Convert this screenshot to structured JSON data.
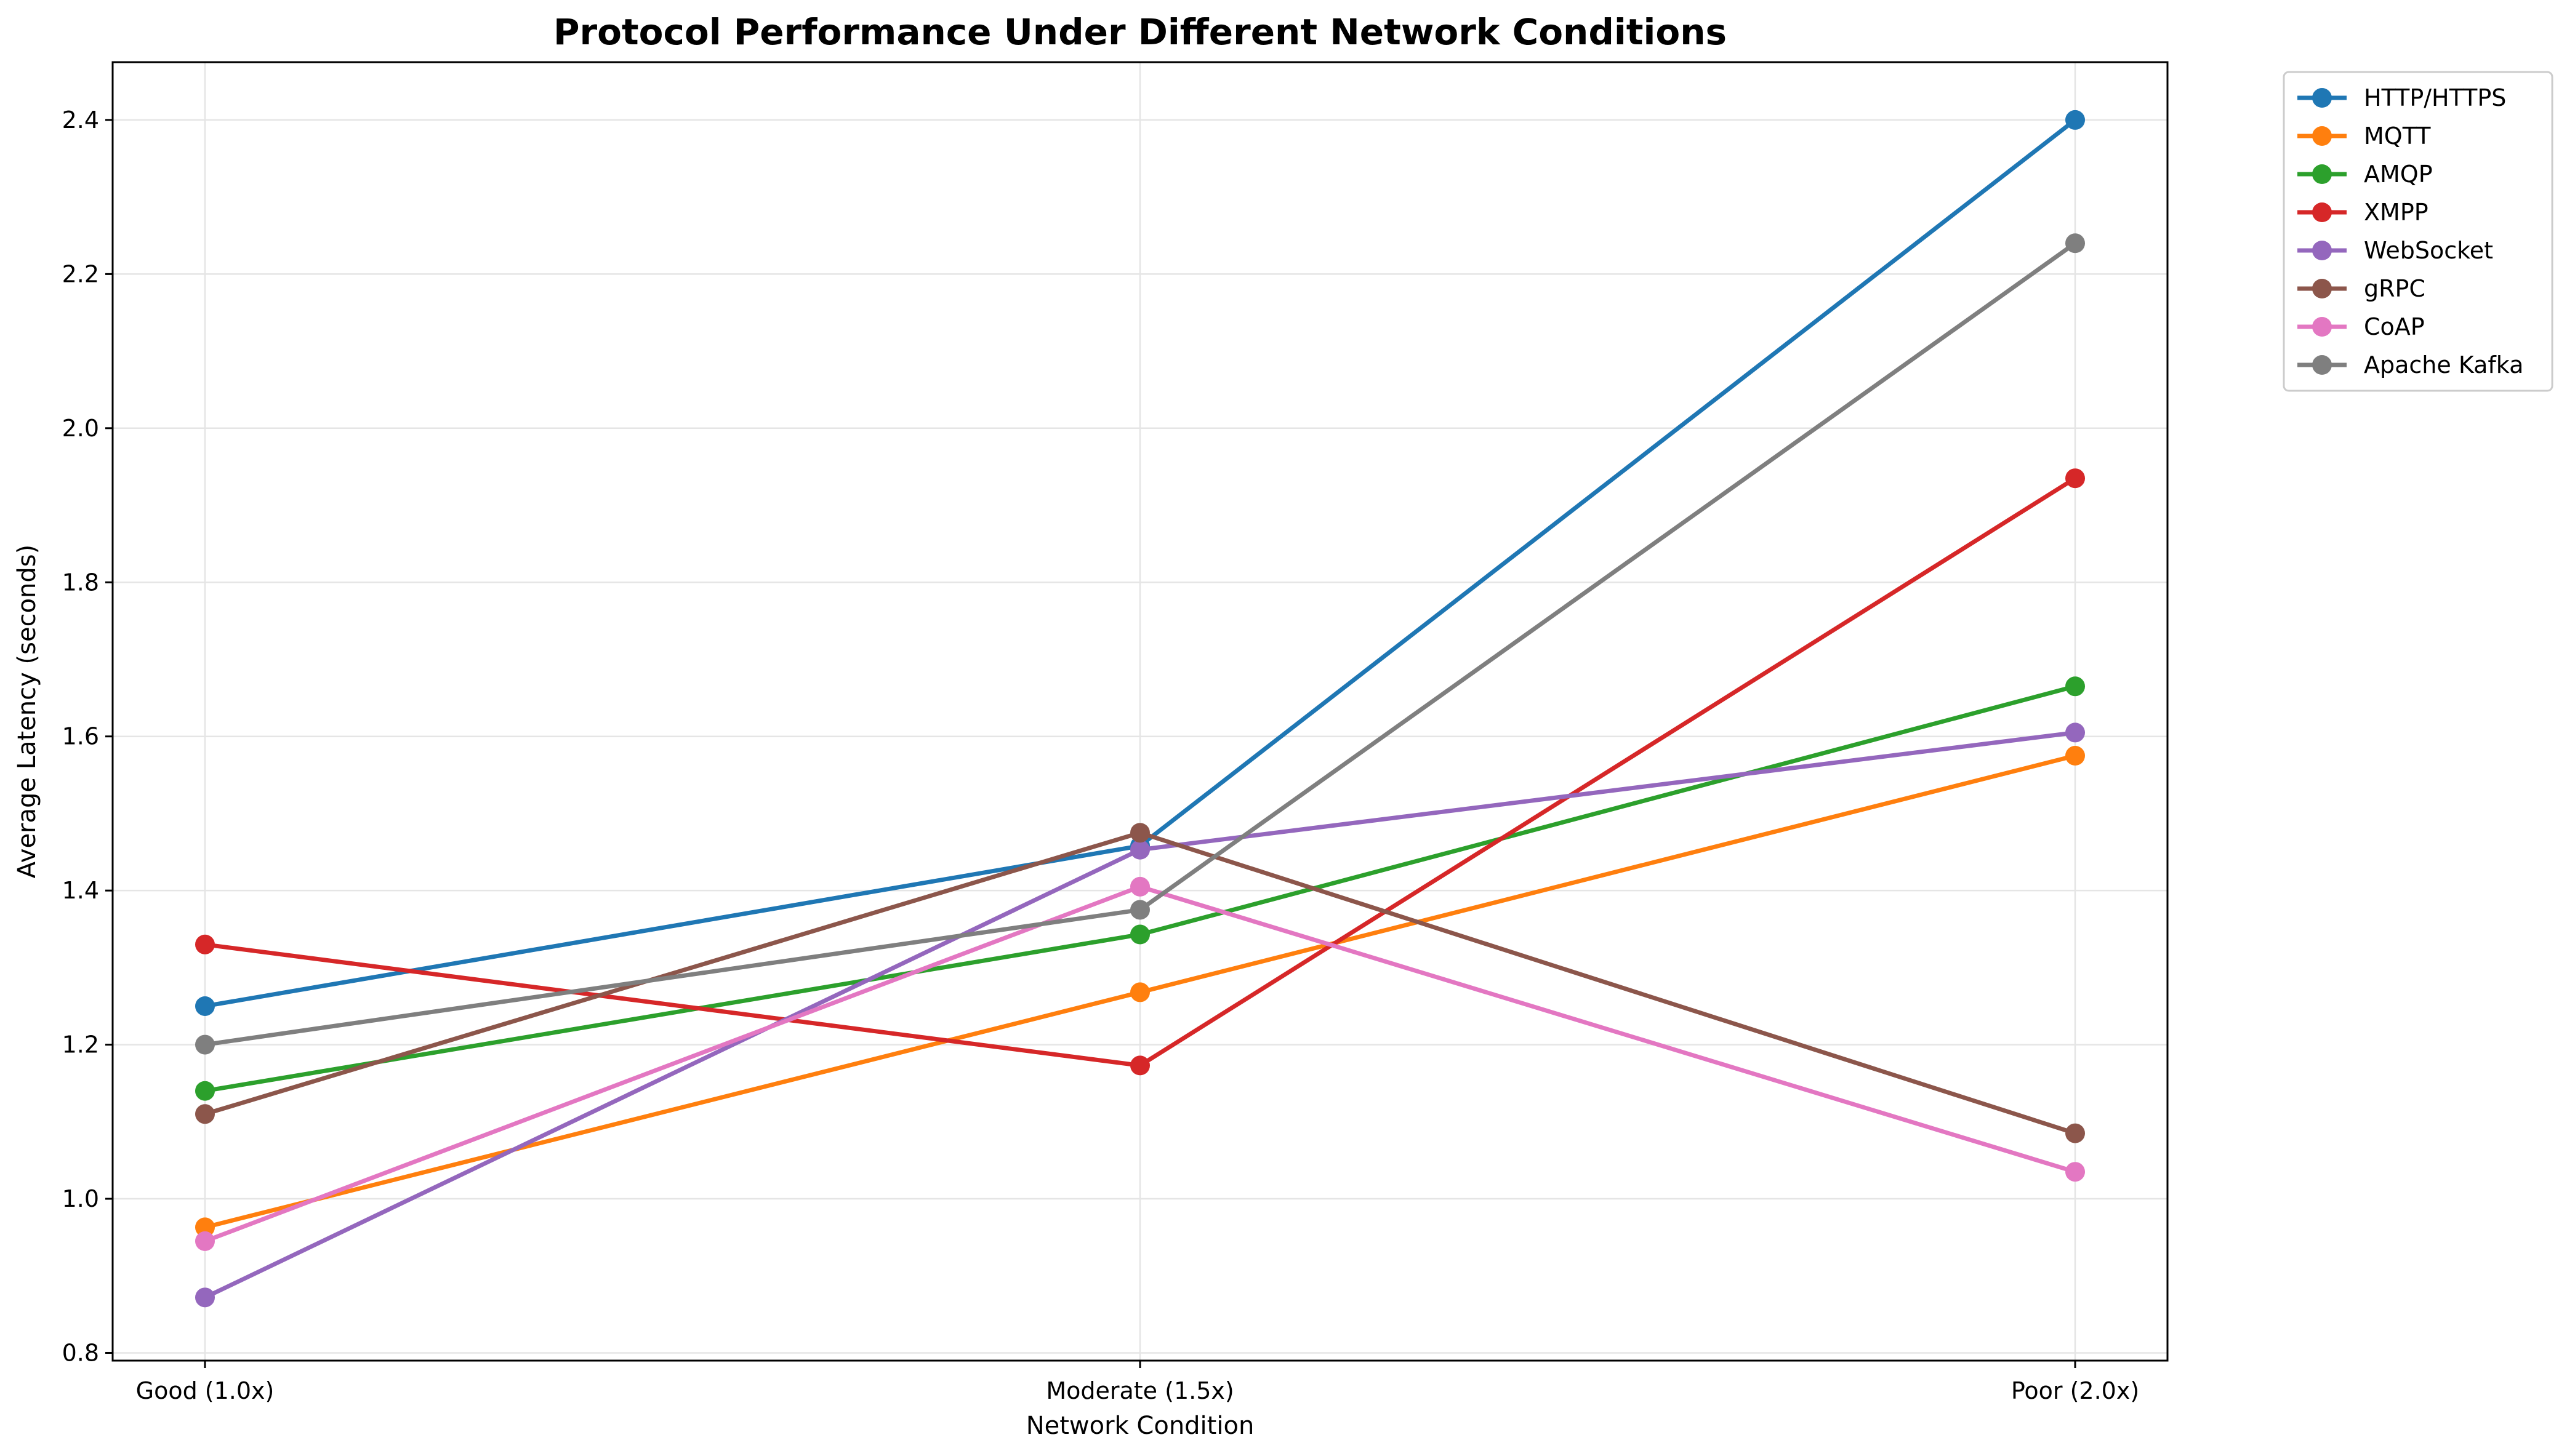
{
  "chart_data": {
    "type": "line",
    "title": "Protocol Performance Under Different Network Conditions",
    "xlabel": "Network Condition",
    "ylabel": "Average Latency (seconds)",
    "categories": [
      "Good (1.0x)",
      "Moderate (1.5x)",
      "Poor (2.0x)"
    ],
    "ylim": [
      0.79,
      2.475
    ],
    "yticks": [
      0.8,
      1.0,
      1.2,
      1.4,
      1.6,
      1.8,
      2.0,
      2.2,
      2.4
    ],
    "grid": true,
    "legend_position": "outside-top-right",
    "series": [
      {
        "name": "HTTP/HTTPS",
        "color": "#1f77b4",
        "values": [
          1.25,
          1.458,
          2.4
        ]
      },
      {
        "name": "MQTT",
        "color": "#ff7f0e",
        "values": [
          0.963,
          1.268,
          1.575
        ]
      },
      {
        "name": "AMQP",
        "color": "#2ca02c",
        "values": [
          1.14,
          1.343,
          1.665
        ]
      },
      {
        "name": "XMPP",
        "color": "#d62728",
        "values": [
          1.33,
          1.173,
          1.935
        ]
      },
      {
        "name": "WebSocket",
        "color": "#9467bd",
        "values": [
          0.872,
          1.453,
          1.605
        ]
      },
      {
        "name": "gRPC",
        "color": "#8c564b",
        "values": [
          1.11,
          1.475,
          1.085
        ]
      },
      {
        "name": "CoAP",
        "color": "#e377c2",
        "values": [
          0.945,
          1.405,
          1.035
        ]
      },
      {
        "name": "Apache Kafka",
        "color": "#7f7f7f",
        "values": [
          1.2,
          1.375,
          2.24
        ]
      }
    ]
  }
}
